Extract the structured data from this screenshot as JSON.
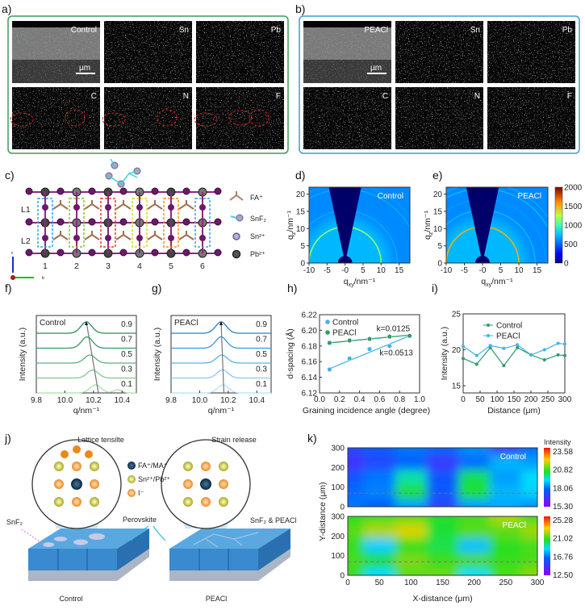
{
  "panel_labels": {
    "a": "a)",
    "b": "b)",
    "c": "c)",
    "d": "d)",
    "e": "e)",
    "f": "f)",
    "g": "g)",
    "h": "h)",
    "i": "i)",
    "j": "j)",
    "k": "k)"
  },
  "colors": {
    "panel_a_border": "#3e9b5a",
    "panel_b_border": "#3a9fd6",
    "control_green": "#2e9d6a",
    "peacl_blue": "#3fb4ea"
  },
  "panel_a": {
    "tiles": [
      "Control",
      "Sn",
      "Pb",
      "C",
      "N",
      "F"
    ],
    "scale": "µm"
  },
  "panel_b": {
    "tiles": [
      "PEACl",
      "Sn",
      "Pb",
      "C",
      "N",
      "F"
    ],
    "scale": "µm"
  },
  "panel_c": {
    "layers": [
      "L1",
      "L2"
    ],
    "columns": [
      "1",
      "2",
      "3",
      "4",
      "5",
      "6"
    ],
    "legend": [
      "FA⁺",
      "SnF₂",
      "Sn²⁺",
      "Pb²⁺"
    ],
    "axes": [
      "c",
      "b"
    ]
  },
  "chart_data": [
    {
      "id": "d",
      "type": "heatmap",
      "title": "Control",
      "xlabel": {
        "main": "q",
        "sub": "xy",
        "tail": "/nm⁻¹"
      },
      "ylabel": {
        "main": "q",
        "sub": "z",
        "tail": "/nm⁻¹"
      },
      "xlim": [
        -10,
        18
      ],
      "ylim": [
        0,
        22
      ],
      "xticks": [
        "-10",
        "-5",
        "-0",
        "5",
        "10",
        "15"
      ],
      "xtick_values": [
        -10,
        -5,
        0,
        5,
        10,
        15
      ],
      "yticks": [
        "0",
        "5",
        "10",
        "15",
        "20"
      ],
      "rings": [
        {
          "q": 10,
          "intensity": 1150
        },
        {
          "q": 14.5,
          "intensity": 700
        },
        {
          "q": 17.5,
          "intensity": 600
        },
        {
          "q": 20.5,
          "intensity": 700
        },
        {
          "q": 22,
          "intensity": 650
        }
      ]
    },
    {
      "id": "e",
      "type": "heatmap",
      "title": "PEACl",
      "xlabel": {
        "main": "q",
        "sub": "xy",
        "tail": "/nm⁻¹"
      },
      "ylabel": {
        "main": "q",
        "sub": "z",
        "tail": "/nm⁻¹"
      },
      "xlim": [
        -10,
        18
      ],
      "ylim": [
        0,
        22
      ],
      "xticks": [
        "-10",
        "-5",
        "-0",
        "5",
        "10",
        "15"
      ],
      "xtick_values": [
        -10,
        -5,
        0,
        5,
        10,
        15
      ],
      "yticks": [
        "0",
        "5",
        "10",
        "15",
        "20"
      ],
      "rings": [
        {
          "q": 10,
          "intensity": 1500
        },
        {
          "q": 14.5,
          "intensity": 750
        },
        {
          "q": 17.5,
          "intensity": 650
        },
        {
          "q": 20.5,
          "intensity": 750
        },
        {
          "q": 22,
          "intensity": 700
        }
      ],
      "colorbar": {
        "range": [
          0,
          2000
        ],
        "ticks": [
          "2000",
          "1500",
          "1000",
          "500",
          "0"
        ]
      }
    },
    {
      "id": "f",
      "type": "line",
      "title": "Control",
      "xlabel": {
        "main": "q",
        "tail": "/nm⁻¹"
      },
      "ylabel": "Intensity (a.u.)",
      "xlim": [
        9.8,
        10.5
      ],
      "xticks": [
        "9.8",
        "10.0",
        "10.2",
        "10.4"
      ],
      "series": [
        {
          "name": "0.9",
          "peak": 10.15
        },
        {
          "name": "0.7",
          "peak": 10.155
        },
        {
          "name": "0.5",
          "peak": 10.175
        },
        {
          "name": "0.3",
          "peak": 10.195
        },
        {
          "name": "0.1",
          "peak": 10.215
        }
      ]
    },
    {
      "id": "g",
      "type": "line",
      "title": "PEACl",
      "xlabel": {
        "main": "q",
        "tail": "/nm⁻¹"
      },
      "ylabel": "Intensity (a.u.)",
      "xlim": [
        9.8,
        10.5
      ],
      "xticks": [
        "9.8",
        "10.0",
        "10.2",
        "10.4"
      ],
      "series": [
        {
          "name": "0.9",
          "peak": 10.15
        },
        {
          "name": "0.7",
          "peak": 10.15
        },
        {
          "name": "0.5",
          "peak": 10.155
        },
        {
          "name": "0.3",
          "peak": 10.16
        },
        {
          "name": "0.1",
          "peak": 10.165
        }
      ]
    },
    {
      "id": "h",
      "type": "scatter",
      "xlabel": "Graining incidence angle (degree)",
      "ylabel": "d-spacing (Å)",
      "xlim": [
        0,
        1
      ],
      "ylim": [
        6.12,
        6.22
      ],
      "xticks": [
        "0.0",
        "0.2",
        "0.4",
        "0.6",
        "0.8",
        "1.0"
      ],
      "yticks": [
        "6.12",
        "6.14",
        "6.16",
        "6.18",
        "6.20",
        "6.22"
      ],
      "x": [
        0.1,
        0.3,
        0.5,
        0.7,
        0.9
      ],
      "series": [
        {
          "name": "Control",
          "values": [
            6.15,
            6.164,
            6.176,
            6.18,
            6.193
          ],
          "fit": [
            6.151,
            6.193
          ],
          "slope_label": "k=0.0513"
        },
        {
          "name": "PEACl",
          "values": [
            6.184,
            6.187,
            6.189,
            6.192,
            6.193
          ],
          "fit": [
            6.184,
            6.194
          ],
          "slope_label": "k=0.0125"
        }
      ]
    },
    {
      "id": "i",
      "type": "line",
      "xlabel": "Distance (μm)",
      "ylabel": "Intensity (a.u.)",
      "xlim": [
        0,
        300
      ],
      "ylim": [
        14,
        25
      ],
      "xticks": [
        "0",
        "50",
        "100",
        "150",
        "200",
        "250",
        "300"
      ],
      "yticks": [
        "15",
        "20",
        "25"
      ],
      "x": [
        0,
        40,
        80,
        120,
        160,
        200,
        240,
        280,
        300
      ],
      "series": [
        {
          "name": "Control",
          "values": [
            18.8,
            18.0,
            20.3,
            17.8,
            20.3,
            19.3,
            18.6,
            19.3,
            19.2
          ]
        },
        {
          "name": "PEACl",
          "values": [
            20.5,
            19.2,
            20.6,
            20.2,
            20.7,
            19.3,
            20.0,
            20.9,
            20.8
          ]
        }
      ]
    },
    {
      "id": "k",
      "type": "heatmap",
      "xlabel": "X-distance (μm)",
      "ylabel": "Y-distance (μm)",
      "xlim": [
        0,
        300
      ],
      "ylim": [
        0,
        300
      ],
      "xticks": [
        "0",
        "50",
        "100",
        "150",
        "200",
        "250",
        "300"
      ],
      "yticks": [
        "0",
        "100",
        "200",
        "300"
      ],
      "colorbar_title": "Intensity",
      "maps": [
        {
          "name": "Control",
          "range": [
            15.3,
            23.58
          ],
          "ticks": [
            "23.58",
            "20.82",
            "18.06",
            "15.30"
          ],
          "grid": [
            [
              17.2,
              17.6,
              18.0,
              17.8,
              18.2,
              16.8,
              17.9
            ],
            [
              16.6,
              17.2,
              17.8,
              16.8,
              17.9,
              18.6,
              18.4
            ],
            [
              17.5,
              18.0,
              19.5,
              17.5,
              20.0,
              18.4,
              19.0
            ],
            [
              17.9,
              18.1,
              20.2,
              17.6,
              20.2,
              18.6,
              18.9
            ],
            [
              18.0,
              17.7,
              18.4,
              17.0,
              18.4,
              18.5,
              18.2
            ]
          ]
        },
        {
          "name": "PEACl",
          "range": [
            12.5,
            25.28
          ],
          "ticks": [
            "25.28",
            "21.02",
            "16.76",
            "12.50"
          ],
          "grid": [
            [
              20.3,
              20.6,
              21.0,
              20.2,
              20.6,
              21.8,
              20.6
            ],
            [
              20.8,
              21.8,
              22.3,
              20.0,
              20.8,
              20.9,
              21.6
            ],
            [
              20.4,
              18.0,
              20.4,
              19.8,
              17.8,
              20.3,
              20.6
            ],
            [
              20.6,
              20.2,
              21.2,
              20.5,
              20.6,
              20.4,
              20.7
            ],
            [
              20.5,
              18.2,
              20.9,
              21.0,
              18.3,
              20.7,
              21.4
            ]
          ]
        }
      ]
    }
  ],
  "panel_j": {
    "left_title": "Lattice tensilte",
    "right_title": "Strain release",
    "legend": [
      "FA⁺/MA⁺",
      "Sn²⁺/Pb²⁺",
      "I⁻"
    ],
    "left_label": "SnF₂",
    "middle_label": "Perovskite",
    "right_label": "SnF₂ & PEACl",
    "captions": [
      "Control",
      "PEACl"
    ]
  }
}
